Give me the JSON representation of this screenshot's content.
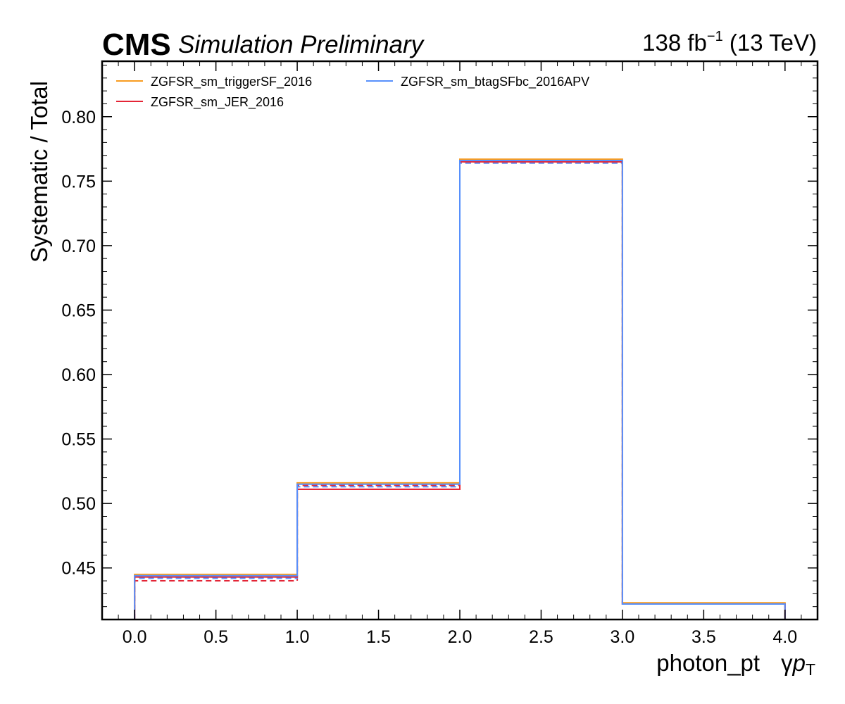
{
  "header": {
    "experiment": "CMS",
    "status": "Simulation Preliminary",
    "lumi_value": "138 fb",
    "lumi_exp": "−1",
    "energy": " (13 TeV)"
  },
  "chart_data": {
    "type": "line",
    "style": "step histogram",
    "xlabel_main": "photon_pt",
    "xlabel_symbol": "γ",
    "xlabel_var": "p",
    "xlabel_sub": "T",
    "ylabel": "Systematic / Total",
    "xlim": [
      -0.2,
      4.2
    ],
    "ylim": [
      0.41,
      0.843
    ],
    "x_ticks": [
      "0.0",
      "0.5",
      "1.0",
      "1.5",
      "2.0",
      "2.5",
      "3.0",
      "3.5",
      "4.0"
    ],
    "y_ticks": [
      "0.45",
      "0.50",
      "0.55",
      "0.60",
      "0.65",
      "0.70",
      "0.75",
      "0.80"
    ],
    "bin_edges": [
      0,
      1,
      2,
      3,
      4
    ],
    "legend_position": "top-left",
    "series": [
      {
        "name": "ZGFSR_sm_triggerSF_2016",
        "color": "#f89c20",
        "values": [
          0.445,
          0.516,
          0.767,
          0.423
        ],
        "dashed_values": [
          0.443,
          0.514,
          0.765,
          0.422
        ]
      },
      {
        "name": "ZGFSR_sm_JER_2016",
        "color": "#e42536",
        "values": [
          0.443,
          0.511,
          0.765,
          0.422
        ],
        "dashed_values": [
          0.44,
          0.514,
          0.764,
          0.422
        ]
      },
      {
        "name": "ZGFSR_sm_btagSFbc_2016APV",
        "color": "#5790fc",
        "values": [
          0.444,
          0.515,
          0.766,
          0.422
        ],
        "dashed_values": [
          0.442,
          0.513,
          0.764,
          0.422
        ]
      }
    ]
  }
}
